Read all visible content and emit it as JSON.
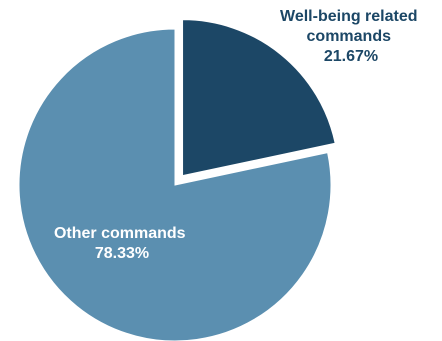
{
  "chart_data": {
    "type": "pie",
    "title": "",
    "slices": [
      {
        "name": "Well-being related commands",
        "label_lines": [
          "Well-being related",
          "commands"
        ],
        "value": 21.67,
        "value_text": "21.67%",
        "color": "#1c4766",
        "label_color": "#1c4766",
        "exploded": true
      },
      {
        "name": "Other commands",
        "label_lines": [
          "Other commands"
        ],
        "value": 78.33,
        "value_text": "78.33%",
        "color": "#5b8fb0",
        "label_color": "#ffffff",
        "exploded": false
      }
    ],
    "start_angle_deg": 0,
    "direction": "clockwise",
    "legend": "none"
  }
}
